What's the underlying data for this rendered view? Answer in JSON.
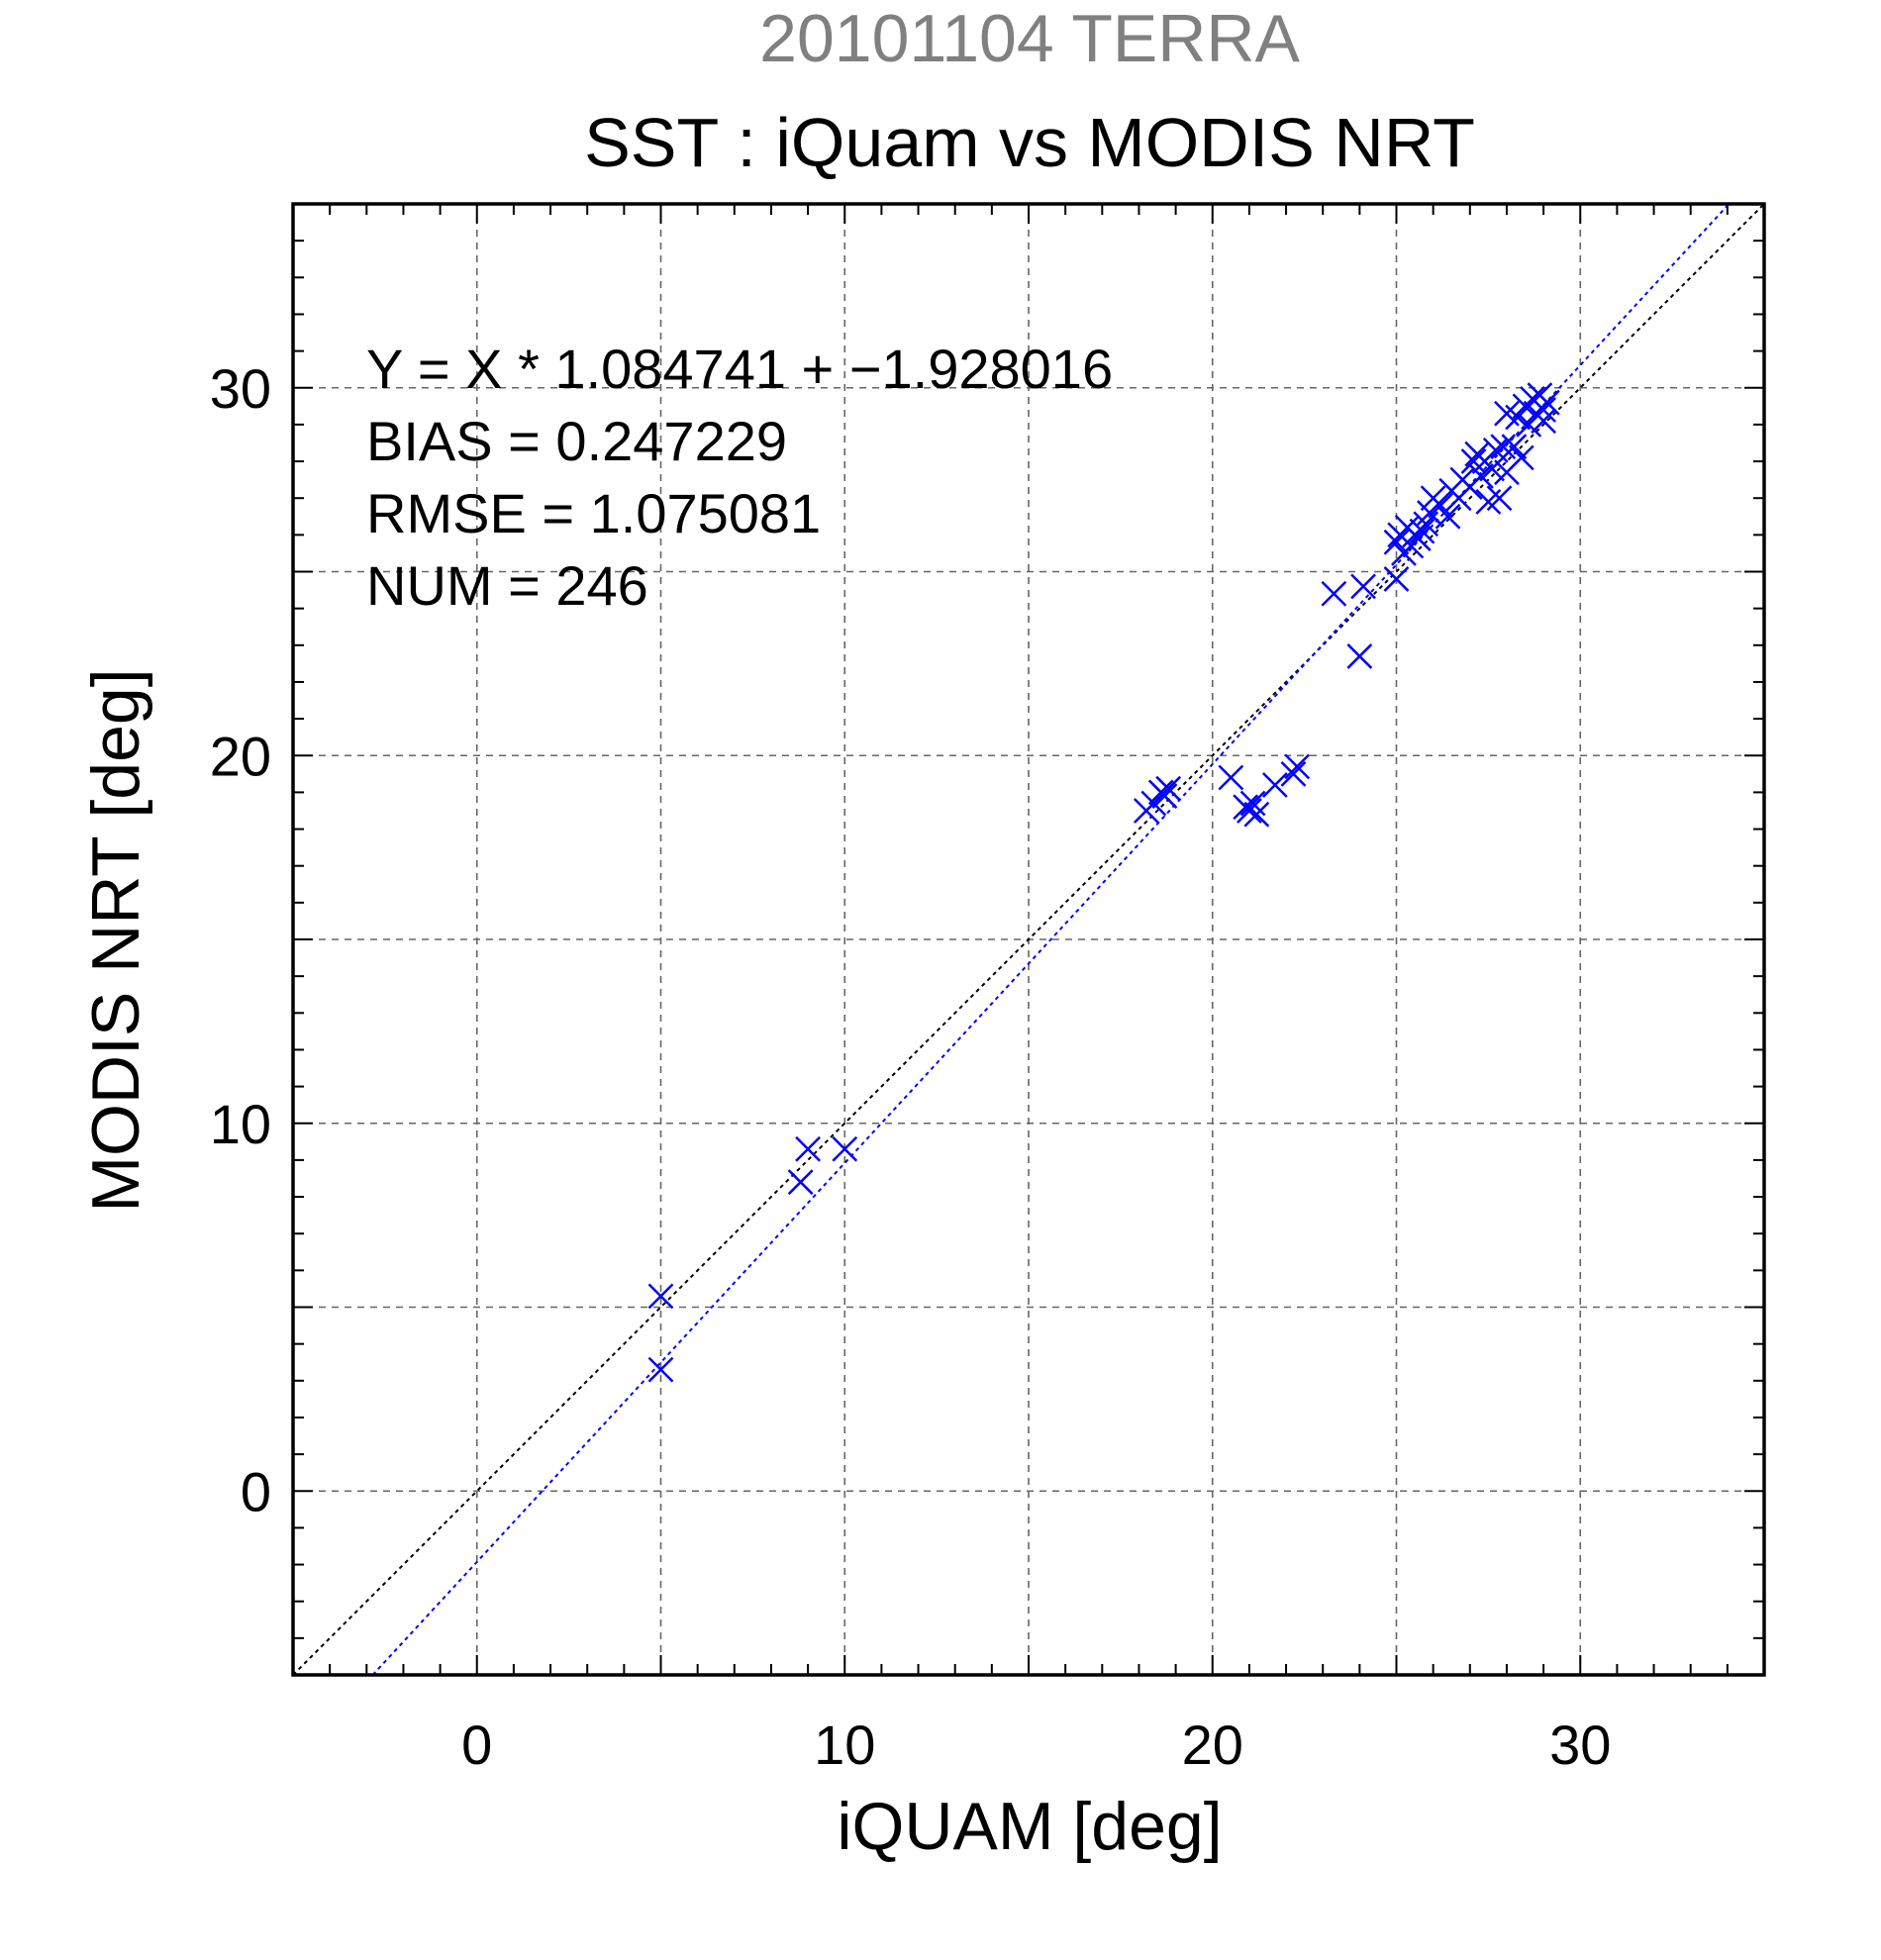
{
  "colors": {
    "background": "#ffffff",
    "frame": "#000000",
    "grid": "#666666",
    "date_title": "#808080",
    "points": "#0000ff",
    "fit_line": "#0000ff",
    "identity_line": "#000000"
  },
  "chart_data": {
    "type": "scatter",
    "date_title": "20101104 TERRA",
    "title": "SST : iQuam vs MODIS NRT",
    "xlabel": "iQUAM [deg]",
    "ylabel": "MODIS NRT [deg]",
    "xlim": [
      -5,
      35
    ],
    "ylim": [
      -5,
      35
    ],
    "xticks": [
      0,
      10,
      20,
      30
    ],
    "yticks": [
      0,
      10,
      20,
      30
    ],
    "tick_labels_x": [
      "0",
      "10",
      "20",
      "30"
    ],
    "tick_labels_y": [
      "0",
      "10",
      "20",
      "30"
    ],
    "grid": true,
    "grid_step": 5,
    "minor_tick_step": 1,
    "marker": "x",
    "stats": {
      "fit_label": "Y = X * 1.084741 + −1.928016",
      "bias_label": "BIAS = 0.247229",
      "rmse_label": "RMSE = 1.075081",
      "num_label": "NUM = 246"
    },
    "fit": {
      "slope": 1.084741,
      "intercept": -1.928016
    },
    "identity_line": {
      "slope": 1,
      "intercept": 0
    },
    "points": [
      {
        "x": 5.0,
        "y": 5.3
      },
      {
        "x": 5.0,
        "y": 3.3
      },
      {
        "x": 8.8,
        "y": 8.4
      },
      {
        "x": 9.0,
        "y": 9.3
      },
      {
        "x": 10.0,
        "y": 9.3
      },
      {
        "x": 18.2,
        "y": 18.5
      },
      {
        "x": 18.4,
        "y": 18.7
      },
      {
        "x": 18.6,
        "y": 19.0
      },
      {
        "x": 18.7,
        "y": 18.9
      },
      {
        "x": 18.8,
        "y": 19.1
      },
      {
        "x": 20.5,
        "y": 19.4
      },
      {
        "x": 20.9,
        "y": 18.6
      },
      {
        "x": 21.0,
        "y": 18.5
      },
      {
        "x": 21.1,
        "y": 18.7
      },
      {
        "x": 21.2,
        "y": 18.4
      },
      {
        "x": 21.7,
        "y": 19.2
      },
      {
        "x": 22.2,
        "y": 19.5
      },
      {
        "x": 22.3,
        "y": 19.7
      },
      {
        "x": 23.3,
        "y": 24.4
      },
      {
        "x": 24.0,
        "y": 22.7
      },
      {
        "x": 24.1,
        "y": 24.6
      },
      {
        "x": 25.0,
        "y": 24.8
      },
      {
        "x": 25.0,
        "y": 25.8
      },
      {
        "x": 25.1,
        "y": 26.0
      },
      {
        "x": 25.2,
        "y": 25.5
      },
      {
        "x": 25.3,
        "y": 26.2
      },
      {
        "x": 25.4,
        "y": 25.7
      },
      {
        "x": 25.5,
        "y": 26.0
      },
      {
        "x": 25.6,
        "y": 25.9
      },
      {
        "x": 25.7,
        "y": 26.1
      },
      {
        "x": 25.8,
        "y": 26.3
      },
      {
        "x": 25.9,
        "y": 26.6
      },
      {
        "x": 26.0,
        "y": 27.0
      },
      {
        "x": 26.2,
        "y": 26.8
      },
      {
        "x": 26.4,
        "y": 26.5
      },
      {
        "x": 26.5,
        "y": 27.2
      },
      {
        "x": 26.7,
        "y": 27.0
      },
      {
        "x": 26.8,
        "y": 27.5
      },
      {
        "x": 27.0,
        "y": 27.3
      },
      {
        "x": 27.1,
        "y": 28.0
      },
      {
        "x": 27.2,
        "y": 28.2
      },
      {
        "x": 27.3,
        "y": 27.6
      },
      {
        "x": 27.4,
        "y": 28.0
      },
      {
        "x": 27.5,
        "y": 26.9
      },
      {
        "x": 27.6,
        "y": 27.8
      },
      {
        "x": 27.7,
        "y": 28.3
      },
      {
        "x": 27.8,
        "y": 27.0
      },
      {
        "x": 27.9,
        "y": 28.4
      },
      {
        "x": 28.0,
        "y": 27.7
      },
      {
        "x": 28.0,
        "y": 29.3
      },
      {
        "x": 28.2,
        "y": 28.4
      },
      {
        "x": 28.3,
        "y": 29.2
      },
      {
        "x": 28.4,
        "y": 28.1
      },
      {
        "x": 28.5,
        "y": 29.5
      },
      {
        "x": 28.6,
        "y": 29.0
      },
      {
        "x": 28.7,
        "y": 29.7
      },
      {
        "x": 28.8,
        "y": 29.3
      },
      {
        "x": 28.9,
        "y": 29.8
      },
      {
        "x": 29.0,
        "y": 29.4
      },
      {
        "x": 29.0,
        "y": 29.1
      },
      {
        "x": 29.1,
        "y": 29.6
      }
    ]
  }
}
